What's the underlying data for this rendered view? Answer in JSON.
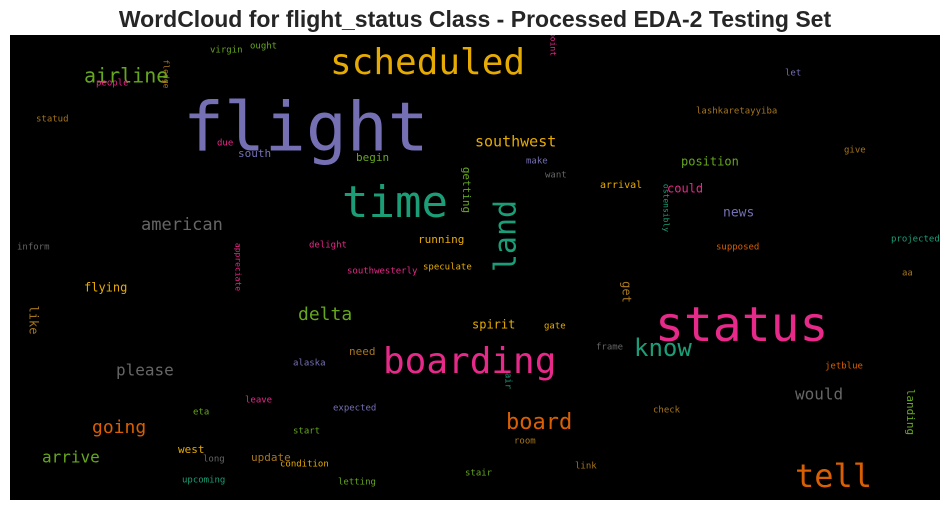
{
  "chart_data": {
    "type": "wordcloud",
    "title": "WordCloud for flight_status Class - Processed EDA-2 Testing Set",
    "background": "#000000",
    "colormap": "Dark2",
    "words": [
      {
        "text": "flight",
        "color": "#7570b3"
      },
      {
        "text": "status",
        "color": "#e7298a"
      },
      {
        "text": "scheduled",
        "color": "#e6ab02"
      },
      {
        "text": "boarding",
        "color": "#e7298a"
      },
      {
        "text": "time",
        "color": "#1b9e77"
      },
      {
        "text": "tell",
        "color": "#d95f02"
      },
      {
        "text": "land",
        "color": "#1b9e77"
      },
      {
        "text": "know",
        "color": "#1b9e77"
      },
      {
        "text": "airline",
        "color": "#66a61e"
      },
      {
        "text": "board",
        "color": "#d95f02"
      },
      {
        "text": "american",
        "color": "#666666"
      },
      {
        "text": "southwest",
        "color": "#e6ab02"
      },
      {
        "text": "delta",
        "color": "#66a61e"
      },
      {
        "text": "going",
        "color": "#d95f02"
      },
      {
        "text": "please",
        "color": "#666666"
      },
      {
        "text": "would",
        "color": "#666666"
      },
      {
        "text": "arrive",
        "color": "#66a61e"
      },
      {
        "text": "news",
        "color": "#7570b3"
      },
      {
        "text": "position",
        "color": "#66a61e"
      },
      {
        "text": "could",
        "color": "#e7298a"
      },
      {
        "text": "getting",
        "color": "#66a61e"
      },
      {
        "text": "running",
        "color": "#e6ab02"
      },
      {
        "text": "flying",
        "color": "#e6ab02"
      },
      {
        "text": "spirit",
        "color": "#e6ab02"
      },
      {
        "text": "like",
        "color": "#a6761d"
      },
      {
        "text": "get",
        "color": "#a6761d"
      },
      {
        "text": "begin",
        "color": "#66a61e"
      },
      {
        "text": "south",
        "color": "#7570b3"
      },
      {
        "text": "update",
        "color": "#a6761d"
      },
      {
        "text": "west",
        "color": "#e6ab02"
      },
      {
        "text": "need",
        "color": "#a6761d"
      },
      {
        "text": "landing",
        "color": "#66a61e"
      },
      {
        "text": "arrival",
        "color": "#e6ab02"
      },
      {
        "text": "virgin",
        "color": "#66a61e"
      },
      {
        "text": "ought",
        "color": "#66a61e"
      },
      {
        "text": "people",
        "color": "#e7298a"
      },
      {
        "text": "fledge",
        "color": "#a6761d"
      },
      {
        "text": "point",
        "color": "#e7298a"
      },
      {
        "text": "let",
        "color": "#7570b3"
      },
      {
        "text": "lashkaretayyiba",
        "color": "#a6761d"
      },
      {
        "text": "statud",
        "color": "#a6761d"
      },
      {
        "text": "due",
        "color": "#e7298a"
      },
      {
        "text": "make",
        "color": "#7570b3"
      },
      {
        "text": "want",
        "color": "#666666"
      },
      {
        "text": "give",
        "color": "#a6761d"
      },
      {
        "text": "inform",
        "color": "#666666"
      },
      {
        "text": "delight",
        "color": "#e7298a"
      },
      {
        "text": "southwesterly",
        "color": "#e7298a"
      },
      {
        "text": "speculate",
        "color": "#e6ab02"
      },
      {
        "text": "appreciate",
        "color": "#e7298a"
      },
      {
        "text": "ostensibly",
        "color": "#1b9e77"
      },
      {
        "text": "supposed",
        "color": "#d95f02"
      },
      {
        "text": "projected",
        "color": "#1b9e77"
      },
      {
        "text": "aa",
        "color": "#a6761d"
      },
      {
        "text": "gate",
        "color": "#e6ab02"
      },
      {
        "text": "frame",
        "color": "#666666"
      },
      {
        "text": "alaska",
        "color": "#7570b3"
      },
      {
        "text": "jetblue",
        "color": "#d95f02"
      },
      {
        "text": "leave",
        "color": "#e7298a"
      },
      {
        "text": "expected",
        "color": "#7570b3"
      },
      {
        "text": "air",
        "color": "#1b9e77"
      },
      {
        "text": "check",
        "color": "#a6761d"
      },
      {
        "text": "eta",
        "color": "#66a61e"
      },
      {
        "text": "start",
        "color": "#66a61e"
      },
      {
        "text": "room",
        "color": "#a6761d"
      },
      {
        "text": "long",
        "color": "#666666"
      },
      {
        "text": "condition",
        "color": "#e6ab02"
      },
      {
        "text": "link",
        "color": "#a6761d"
      },
      {
        "text": "stair",
        "color": "#66a61e"
      },
      {
        "text": "upcoming",
        "color": "#1b9e77"
      },
      {
        "text": "letting",
        "color": "#66a61e"
      }
    ]
  }
}
